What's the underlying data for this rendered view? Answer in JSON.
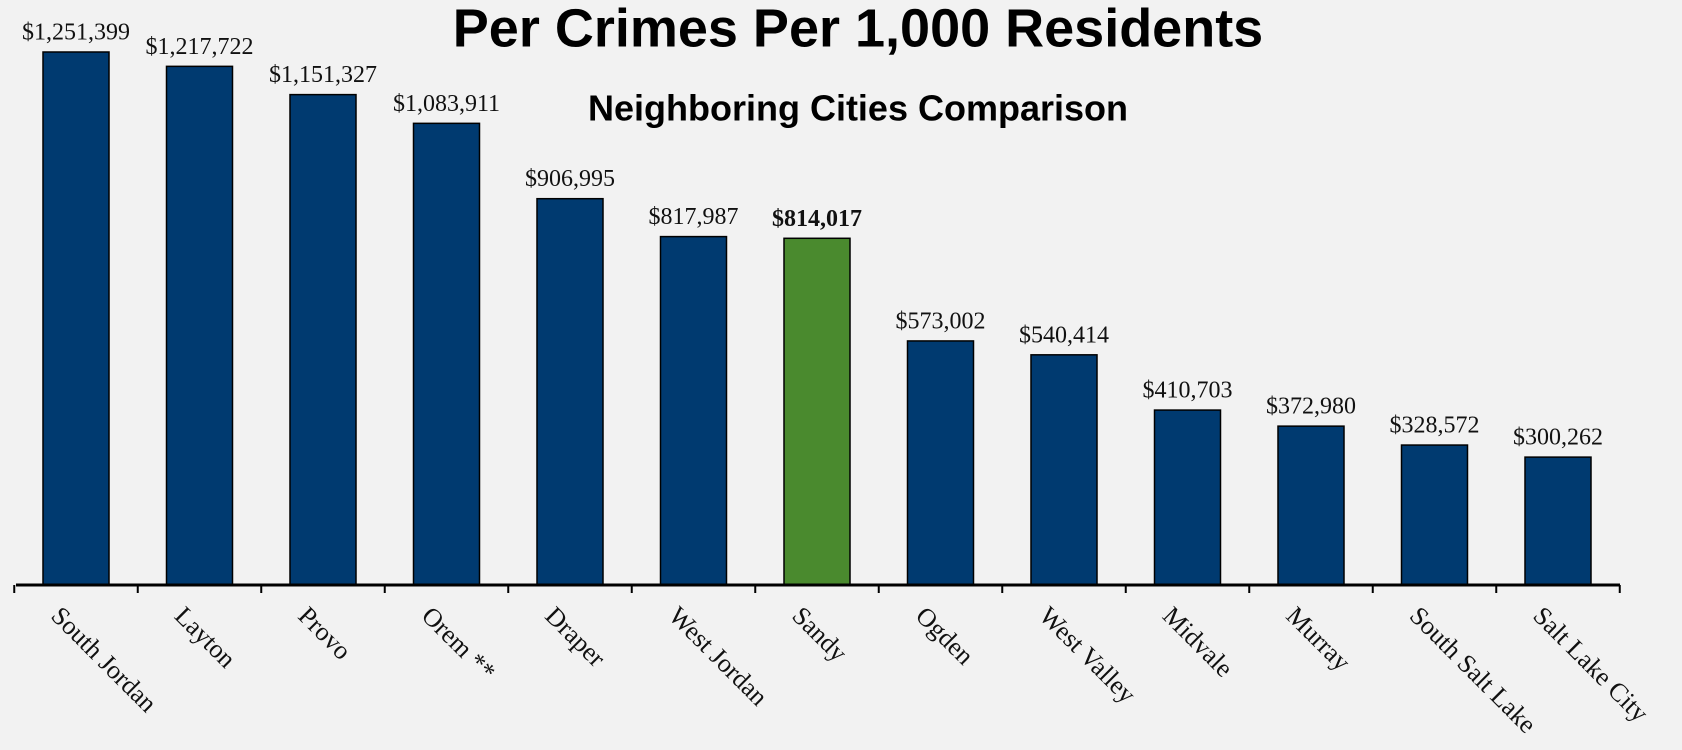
{
  "chart_data": {
    "type": "bar",
    "title": "Per Crimes Per 1,000 Residents",
    "subtitle": "Neighboring Cities Comparison",
    "categories": [
      "South Jordan",
      "Layton",
      "Provo",
      "Orem **",
      "Draper",
      "West Jordan",
      "Sandy",
      "Ogden",
      "West Valley",
      "Midvale",
      "Murray",
      "South Salt Lake",
      "Salt Lake City"
    ],
    "values": [
      1251399,
      1217722,
      1151327,
      1083911,
      906995,
      817987,
      814017,
      573002,
      540414,
      410703,
      372980,
      328572,
      300262
    ],
    "value_labels": [
      "$1,251,399",
      "$1,217,722",
      "$1,151,327",
      "$1,083,911",
      "$906,995",
      "$817,987",
      "$814,017",
      "$573,002",
      "$540,414",
      "$410,703",
      "$372,980",
      "$328,572",
      "$300,262"
    ],
    "color": "#003a70",
    "colors": [
      "#003a70",
      "#003a70",
      "#003a70",
      "#003a70",
      "#003a70",
      "#003a70",
      "#4a8a2e",
      "#003a70",
      "#003a70",
      "#003a70",
      "#003a70",
      "#003a70",
      "#003a70"
    ]
  }
}
